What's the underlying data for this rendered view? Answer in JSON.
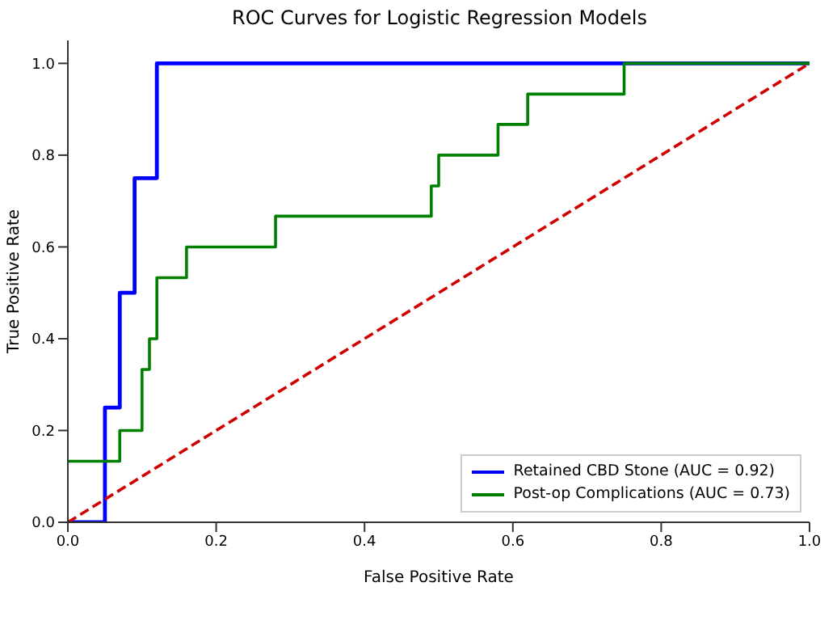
{
  "chart_data": {
    "type": "step",
    "title": "ROC Curves for Logistic Regression Models",
    "xlabel": "False Positive Rate",
    "ylabel": "True Positive Rate",
    "series": [
      {
        "name": "Retained CBD Stone (AUC = 0.92)",
        "color": "#0000ff",
        "x": [
          0,
          0.05,
          0.07,
          0.09,
          0.12,
          1
        ],
        "values": [
          0,
          0.25,
          0.5,
          0.75,
          1,
          1
        ]
      },
      {
        "name": "Post-op Complications (AUC = 0.73)",
        "color": "#008000",
        "x": [
          0,
          0.07,
          0.1,
          0.11,
          0.12,
          0.16,
          0.28,
          0.49,
          0.5,
          0.58,
          0.62,
          0.75,
          1
        ],
        "values": [
          0.133,
          0.2,
          0.333,
          0.4,
          0.533,
          0.6,
          0.667,
          0.733,
          0.8,
          0.867,
          0.933,
          1,
          1
        ]
      },
      {
        "type": "line",
        "color": "#d00000",
        "line_style": "dashed",
        "x": [
          0,
          1
        ],
        "values": [
          0,
          1
        ]
      }
    ],
    "xlim": [
      0,
      1
    ],
    "ylim": [
      0,
      1.05
    ],
    "xticks": [
      {
        "value": 0,
        "label": "0.0"
      },
      {
        "value": 0.2,
        "label": "0.2"
      },
      {
        "value": 0.4,
        "label": "0.4"
      },
      {
        "value": 0.6,
        "label": "0.6"
      },
      {
        "value": 0.8,
        "label": "0.8"
      },
      {
        "value": 1,
        "label": "1.0"
      }
    ],
    "yticks": [
      {
        "value": 0,
        "label": "0.0"
      },
      {
        "value": 0.2,
        "label": "0.2"
      },
      {
        "value": 0.4,
        "label": "0.4"
      },
      {
        "value": 0.6,
        "label": "0.6"
      },
      {
        "value": 0.8,
        "label": "0.8"
      },
      {
        "value": 1,
        "label": "1.0"
      }
    ],
    "grid": false,
    "legend": "bottom right",
    "marker": "none"
  }
}
